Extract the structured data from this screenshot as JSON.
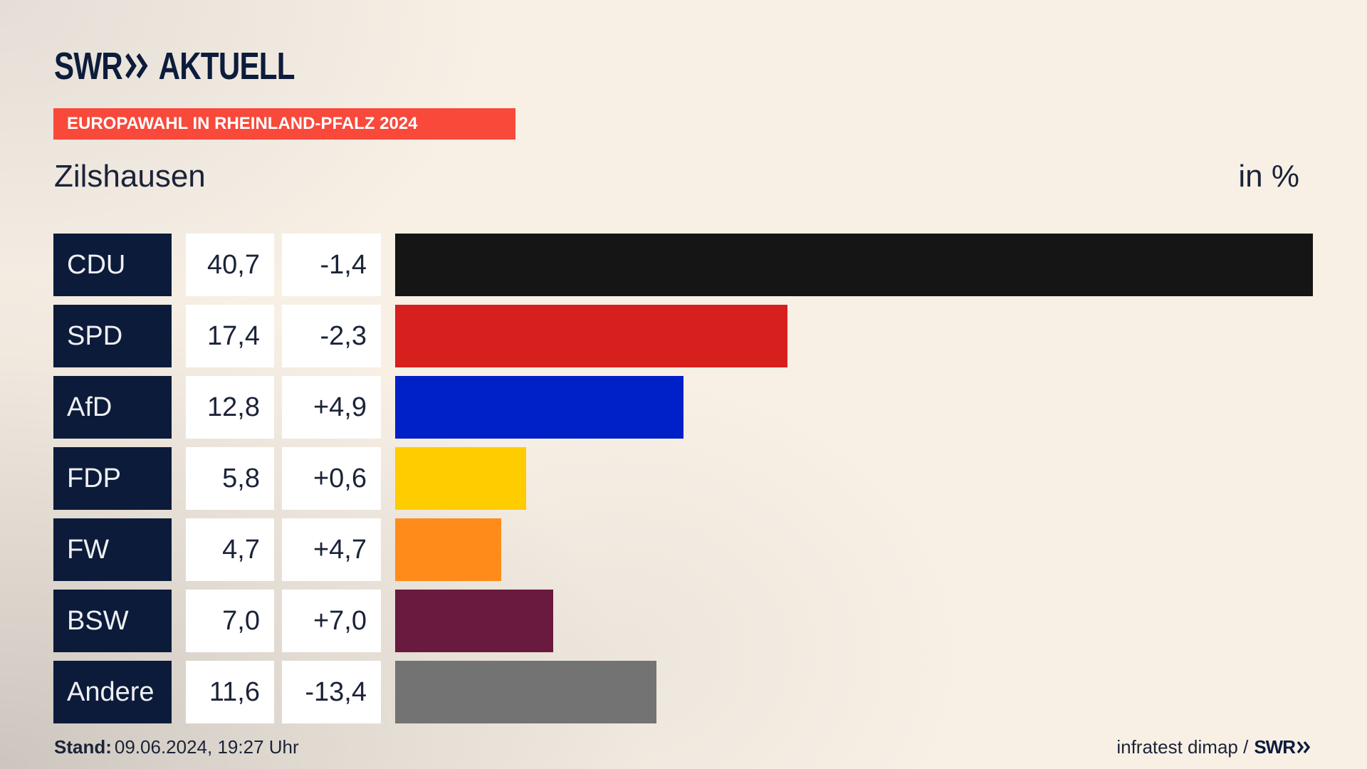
{
  "logo": {
    "brand": "SWR",
    "name": "AKTUELL",
    "icon": "double-chevron-icon",
    "color": "#0d1c3b"
  },
  "banner": {
    "text": "EUROPAWAHL IN RHEINLAND-PFALZ 2024",
    "color": "#f8493b"
  },
  "chart_data": {
    "type": "bar",
    "orientation": "horizontal",
    "title": "Zilshausen",
    "unit": "in %",
    "categories": [
      "CDU",
      "SPD",
      "AfD",
      "FDP",
      "FW",
      "BSW",
      "Andere"
    ],
    "values": [
      40.7,
      17.4,
      12.8,
      5.8,
      4.7,
      7.0,
      11.6
    ],
    "value_labels": [
      "40,7",
      "17,4",
      "12,8",
      "5,8",
      "4,7",
      "7,0",
      "11,6"
    ],
    "changes": [
      -1.4,
      -2.3,
      4.9,
      0.6,
      4.7,
      7.0,
      -13.4
    ],
    "change_labels": [
      "-1,4",
      "-2,3",
      "+4,9",
      "+0,6",
      "+4,7",
      "+7,0",
      "-13,4"
    ],
    "colors": [
      "#151515",
      "#d71f1d",
      "#0021c8",
      "#ffcc00",
      "#ff8c1a",
      "#6a1a3e",
      "#737373"
    ],
    "grid": false,
    "legend": "none"
  },
  "footer": {
    "stand_label": "Stand:",
    "stand_value": "09.06.2024, 19:27 Uhr",
    "source": "infratest dimap /",
    "source_brand": "SWR"
  }
}
